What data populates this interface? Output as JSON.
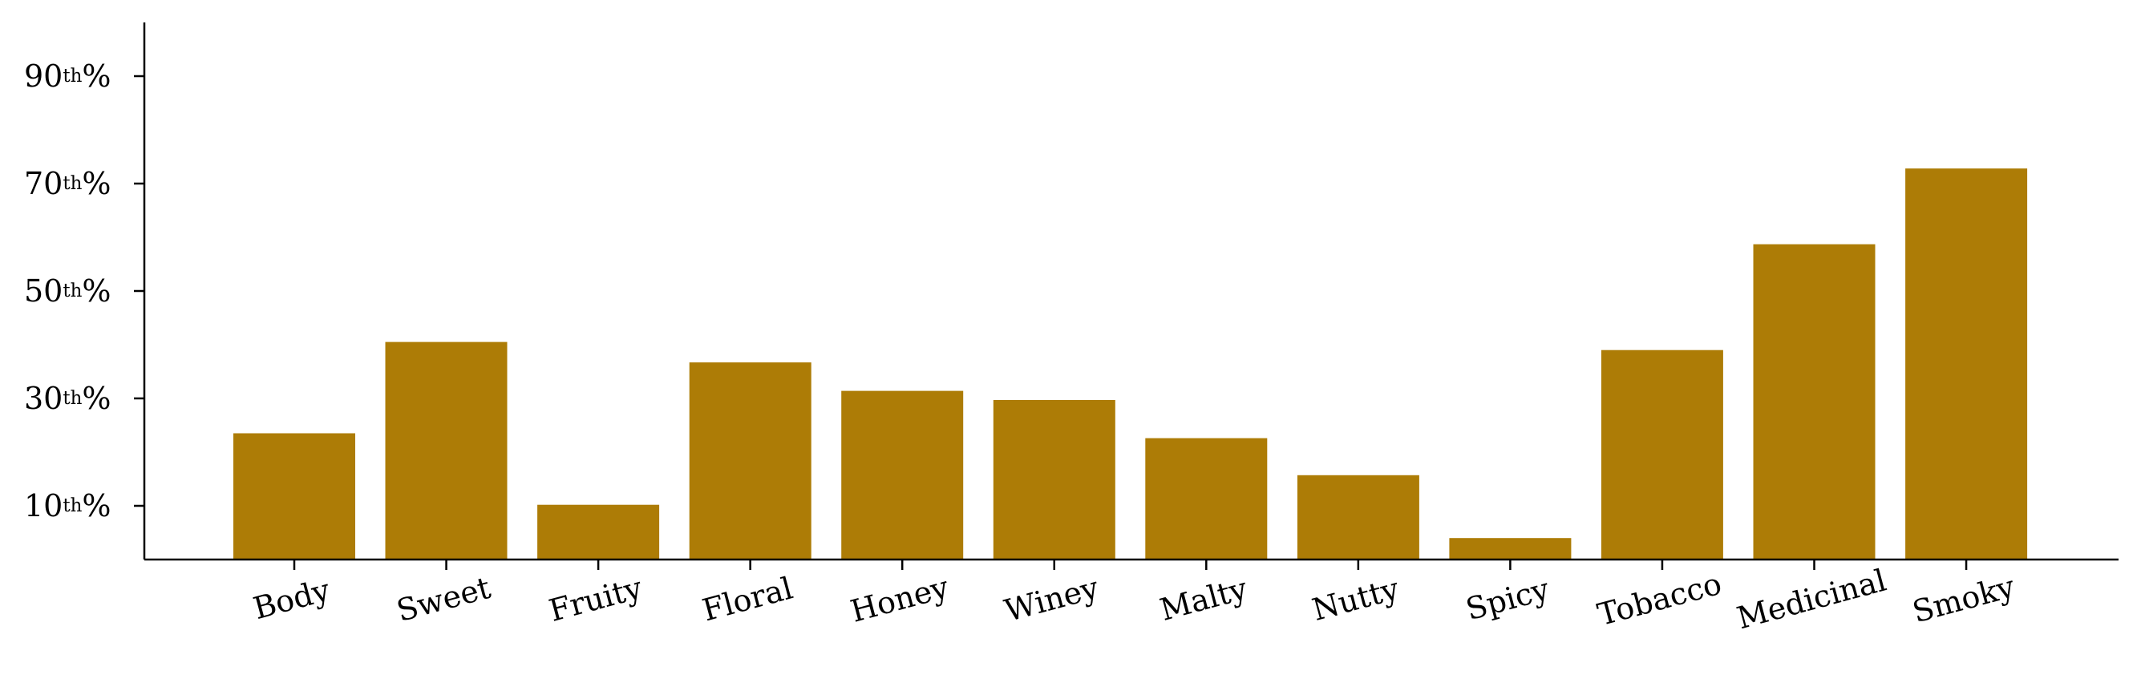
{
  "chart_data": {
    "type": "bar",
    "categories": [
      "Body",
      "Sweet",
      "Fruity",
      "Floral",
      "Honey",
      "Winey",
      "Malty",
      "Nutty",
      "Spicy",
      "Tobacco",
      "Medicinal",
      "Smoky"
    ],
    "values": [
      23.5,
      40.5,
      10.2,
      36.7,
      31.4,
      29.7,
      22.6,
      15.7,
      4.0,
      39.0,
      58.7,
      72.8
    ],
    "ylim": [
      0,
      100
    ],
    "yticks": [
      {
        "value": 10,
        "num": "10",
        "sup": "th",
        "pct": "%"
      },
      {
        "value": 30,
        "num": "30",
        "sup": "th",
        "pct": "%"
      },
      {
        "value": 50,
        "num": "50",
        "sup": "th",
        "pct": "%"
      },
      {
        "value": 70,
        "num": "70",
        "sup": "th",
        "pct": "%"
      },
      {
        "value": 90,
        "num": "90",
        "sup": "th",
        "pct": "%"
      }
    ],
    "bar_color": "#ad7c06",
    "grid": false,
    "title": "",
    "xlabel": "",
    "ylabel": ""
  }
}
